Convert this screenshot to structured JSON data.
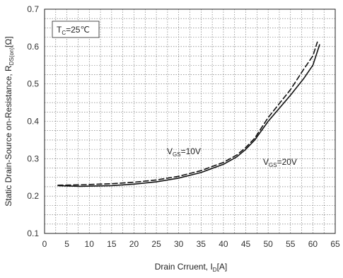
{
  "chart_data": {
    "type": "line",
    "title": "",
    "xlabel": {
      "main": "Drain Crruent, I",
      "sub": "D",
      "unit": "[A]"
    },
    "ylabel": {
      "main": "Static Drain-Source on-Resistance, R",
      "sub": "DS(on)",
      "unit": "[Ω]"
    },
    "xlim": [
      0,
      65
    ],
    "ylim": [
      0.1,
      0.7
    ],
    "xticks": [
      "0",
      "5",
      "10",
      "15",
      "20",
      "25",
      "30",
      "35",
      "40",
      "45",
      "50",
      "55",
      "60",
      "65"
    ],
    "yticks": [
      "0.1",
      "0.2",
      "0.3",
      "0.4",
      "0.5",
      "0.6",
      "0.7"
    ],
    "grid": true,
    "condition": {
      "main": "T",
      "sub": "C",
      "rest": "=25℃"
    },
    "series": [
      {
        "name": "VGS=10V",
        "label": {
          "main": "V",
          "sub": "GS",
          "rest": "=10V"
        },
        "style": "solid",
        "x": [
          3,
          8,
          15,
          20,
          25,
          30,
          35,
          40,
          43,
          45,
          47,
          50,
          55,
          58,
          60,
          61.5
        ],
        "y": [
          0.228,
          0.226,
          0.228,
          0.232,
          0.238,
          0.248,
          0.263,
          0.285,
          0.305,
          0.325,
          0.35,
          0.4,
          0.47,
          0.515,
          0.55,
          0.605
        ]
      },
      {
        "name": "VGS=20V",
        "label": {
          "main": "V",
          "sub": "GS",
          "rest": "=20V"
        },
        "style": "dashed",
        "x": [
          3,
          8,
          15,
          20,
          25,
          30,
          35,
          40,
          43,
          45,
          47,
          50,
          55,
          58,
          60,
          61
        ],
        "y": [
          0.229,
          0.23,
          0.233,
          0.237,
          0.243,
          0.253,
          0.268,
          0.29,
          0.31,
          0.33,
          0.355,
          0.41,
          0.485,
          0.54,
          0.575,
          0.612
        ]
      }
    ]
  }
}
